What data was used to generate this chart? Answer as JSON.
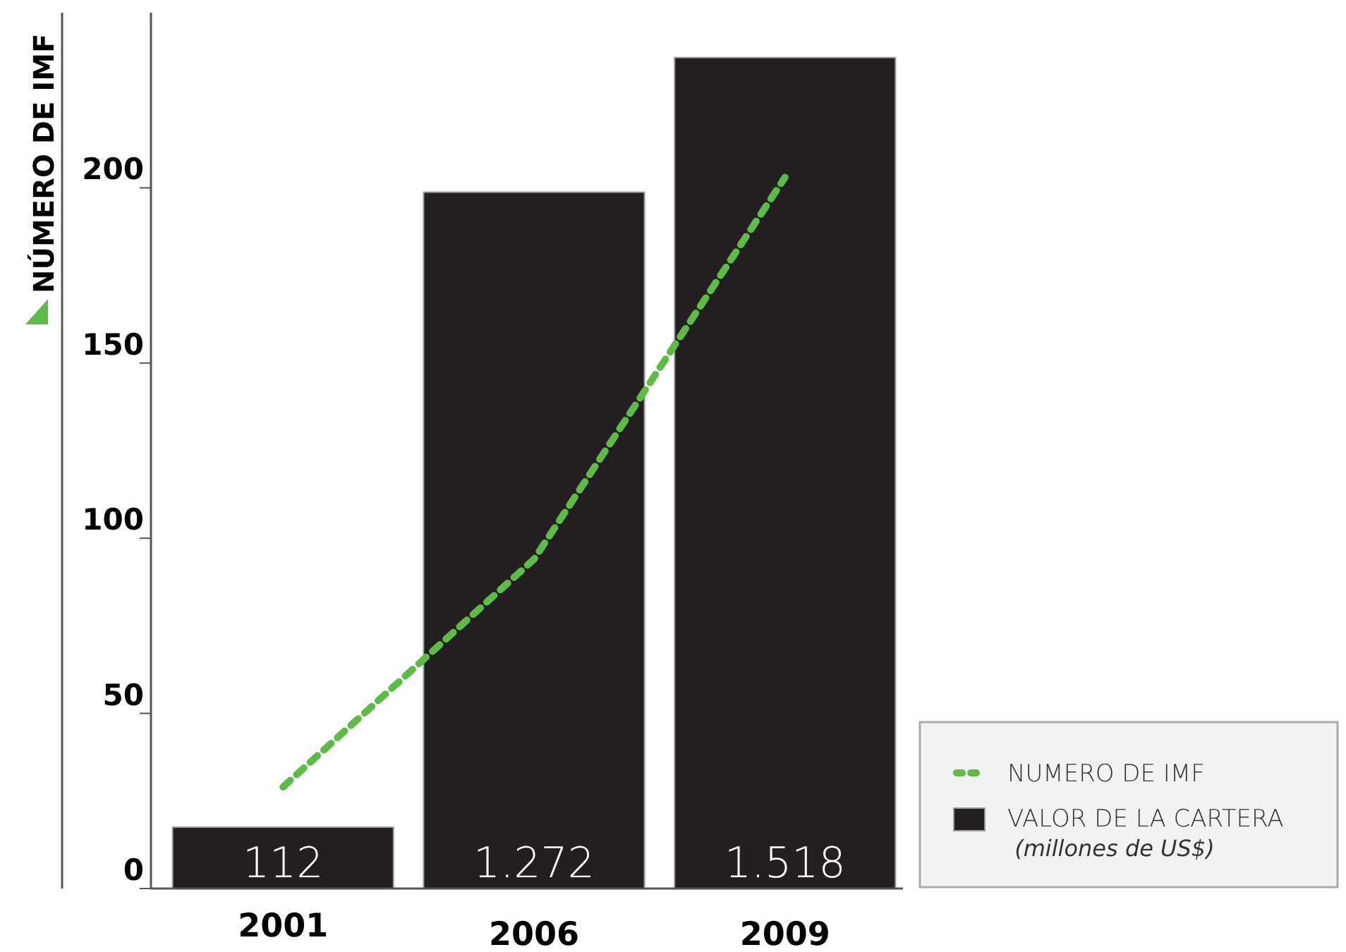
{
  "chart_data": {
    "type": "bar",
    "ylabel": "NÚMERO DE IMF",
    "categories": [
      "2001",
      "2006",
      "2009"
    ],
    "series": [
      {
        "name": "VALOR DE LA CARTERA (millones de US$)",
        "axis": "y2",
        "color": "#231f20",
        "values": [
          112,
          1272,
          1518
        ],
        "value_labels": [
          "112",
          "1.272",
          "1.518"
        ]
      },
      {
        "name": "NUMERO DE IMF",
        "type": "line",
        "color": "#5dbb46",
        "values": [
          29,
          94,
          203
        ],
        "line_style": "dashed",
        "marker": "none"
      }
    ],
    "ylim": [
      0,
      250
    ],
    "yticks": [
      0,
      50,
      100,
      150,
      200
    ],
    "y2lim": [
      0,
      1600
    ],
    "tick_labels": [
      "x",
      "y"
    ],
    "grid": false,
    "legend": "bottom right"
  }
}
